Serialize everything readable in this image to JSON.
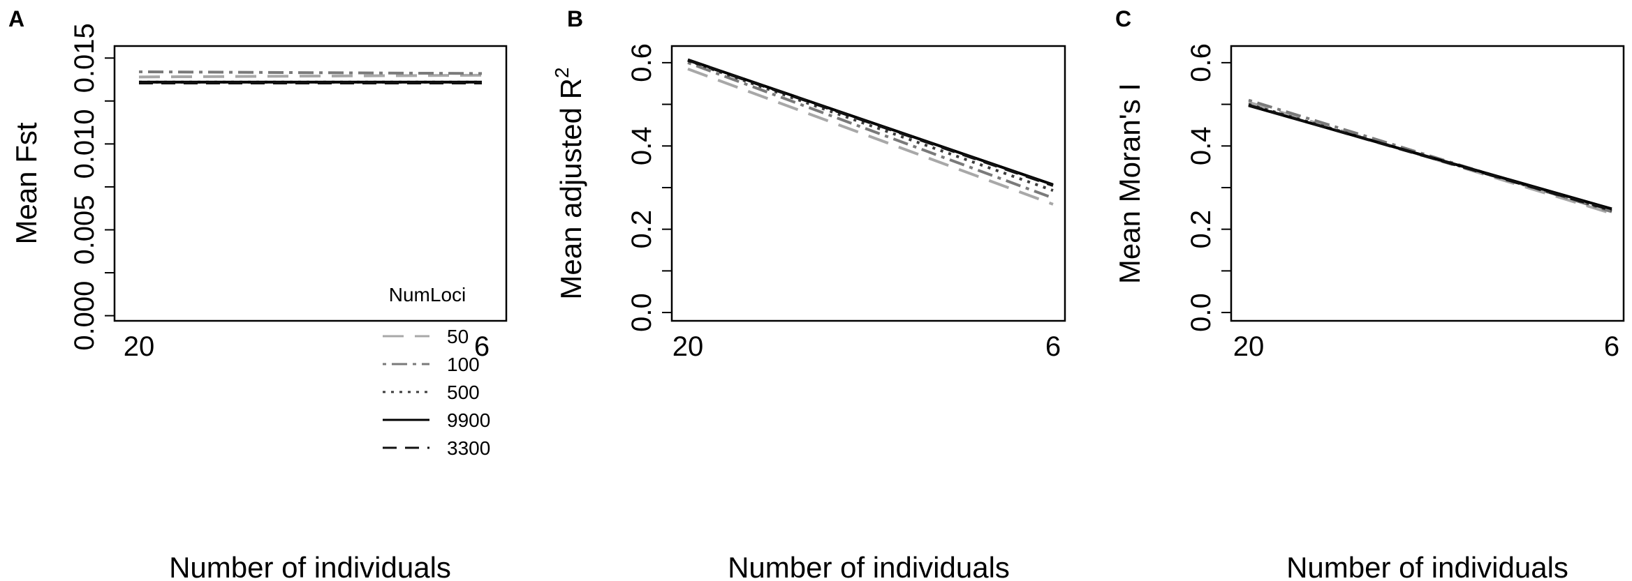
{
  "chart_data": [
    {
      "panel_label": "A",
      "type": "line",
      "x": [
        20,
        6
      ],
      "xticks": [
        "20",
        "6"
      ],
      "xlabel": "Number of individuals",
      "ylabel": "Mean Fst",
      "ylabel_sup": "",
      "ylim": [
        -0.0003,
        0.0157
      ],
      "yticks": [
        "0.000",
        "0.005",
        "0.010",
        "0.015"
      ],
      "grid": false,
      "legend": {
        "title": "NumLoci",
        "position": "bottom-right",
        "entries": [
          "50",
          "100",
          "500",
          "9900",
          "3300"
        ]
      },
      "series": [
        {
          "name": "50",
          "style": "longdash",
          "color": "#a8a8a8",
          "values": [
            0.0139,
            0.014
          ]
        },
        {
          "name": "100",
          "style": "dotdash",
          "color": "#7a7a7a",
          "values": [
            0.0142,
            0.0141
          ]
        },
        {
          "name": "500",
          "style": "dotted",
          "color": "#3c3c3c",
          "values": [
            0.0136,
            0.0136
          ]
        },
        {
          "name": "9900",
          "style": "solid",
          "color": "#000000",
          "values": [
            0.0136,
            0.0136
          ]
        },
        {
          "name": "3300",
          "style": "dashed",
          "color": "#111111",
          "values": [
            0.01355,
            0.01355
          ]
        }
      ]
    },
    {
      "panel_label": "B",
      "type": "line",
      "x": [
        20,
        6
      ],
      "xticks": [
        "20",
        "6"
      ],
      "xlabel": "Number of individuals",
      "ylabel": "Mean adjusted R",
      "ylabel_sup": "2",
      "ylim": [
        -0.02,
        0.64
      ],
      "yticks": [
        "0.0",
        "0.2",
        "0.4",
        "0.6"
      ],
      "grid": false,
      "legend": null,
      "series": [
        {
          "name": "50",
          "style": "longdash",
          "color": "#a8a8a8",
          "values": [
            0.585,
            0.26
          ]
        },
        {
          "name": "100",
          "style": "dotdash",
          "color": "#7a7a7a",
          "values": [
            0.6,
            0.275
          ]
        },
        {
          "name": "500",
          "style": "dotted",
          "color": "#3c3c3c",
          "values": [
            0.605,
            0.293
          ]
        },
        {
          "name": "9900",
          "style": "solid",
          "color": "#000000",
          "values": [
            0.607,
            0.307
          ]
        },
        {
          "name": "3300",
          "style": "dashed",
          "color": "#111111",
          "values": [
            0.606,
            0.305
          ]
        }
      ]
    },
    {
      "panel_label": "C",
      "type": "line",
      "x": [
        20,
        6
      ],
      "xticks": [
        "20",
        "6"
      ],
      "xlabel": "Number of individuals",
      "ylabel": "Mean Moran's I",
      "ylabel_sup": "",
      "ylim": [
        -0.02,
        0.64
      ],
      "yticks": [
        "0.0",
        "0.2",
        "0.4",
        "0.6"
      ],
      "grid": false,
      "legend": null,
      "series": [
        {
          "name": "50",
          "style": "longdash",
          "color": "#a8a8a8",
          "values": [
            0.505,
            0.238
          ]
        },
        {
          "name": "100",
          "style": "dotdash",
          "color": "#7a7a7a",
          "values": [
            0.51,
            0.242
          ]
        },
        {
          "name": "500",
          "style": "dotted",
          "color": "#3c3c3c",
          "values": [
            0.5,
            0.245
          ]
        },
        {
          "name": "9900",
          "style": "solid",
          "color": "#000000",
          "values": [
            0.497,
            0.249
          ]
        },
        {
          "name": "3300",
          "style": "dashed",
          "color": "#111111",
          "values": [
            0.498,
            0.246
          ]
        }
      ]
    }
  ]
}
